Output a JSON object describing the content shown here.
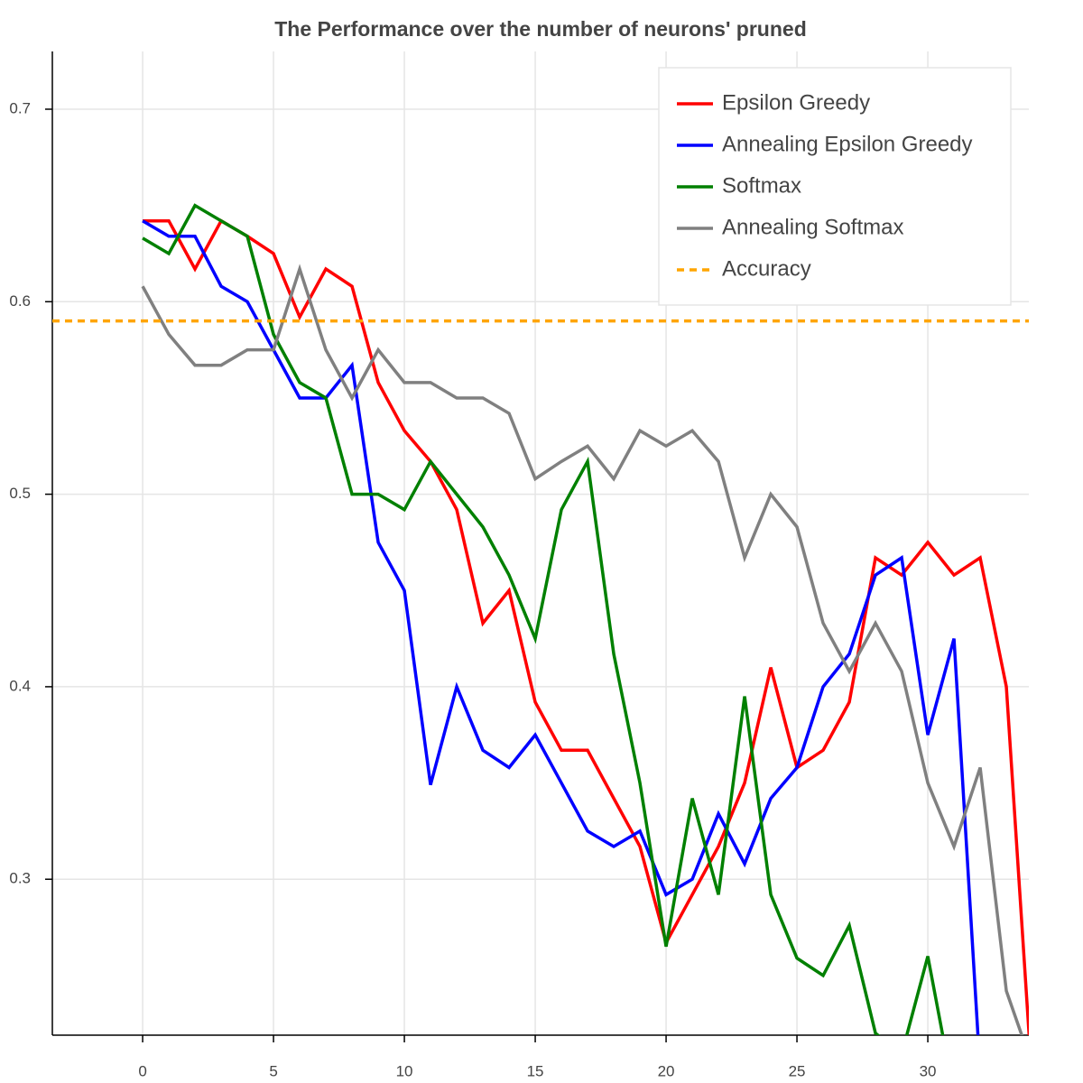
{
  "chart_data": {
    "type": "line",
    "title": "The Performance over the number of neurons' pruned",
    "x": [
      0,
      1,
      2,
      3,
      4,
      5,
      6,
      7,
      8,
      9,
      10,
      11,
      12,
      13,
      14,
      15,
      16,
      17,
      18,
      19,
      20,
      21,
      22,
      23,
      24,
      25,
      26,
      27,
      28,
      29,
      30,
      31,
      32,
      33,
      34
    ],
    "series": [
      {
        "name": "Epsilon Greedy",
        "color": "#ff0000",
        "values": [
          0.642,
          0.642,
          0.617,
          0.642,
          0.634,
          0.625,
          0.592,
          0.617,
          0.608,
          0.558,
          0.533,
          0.517,
          0.492,
          0.433,
          0.45,
          0.392,
          0.367,
          0.367,
          0.342,
          0.317,
          0.267,
          0.292,
          0.317,
          0.35,
          0.41,
          0.358,
          0.367,
          0.392,
          0.467,
          0.458,
          0.475,
          0.458,
          0.467,
          0.4,
          0.192
        ]
      },
      {
        "name": "Annealing Epsilon Greedy",
        "color": "#0000ff",
        "values": [
          0.642,
          0.634,
          0.634,
          0.608,
          0.6,
          0.575,
          0.55,
          0.55,
          0.567,
          0.475,
          0.45,
          0.349,
          0.4,
          0.367,
          0.358,
          0.375,
          0.35,
          0.325,
          0.317,
          0.325,
          0.292,
          0.3,
          0.334,
          0.308,
          0.342,
          0.358,
          0.4,
          0.417,
          0.458,
          0.467,
          0.375,
          0.425,
          0.2,
          null,
          null
        ]
      },
      {
        "name": "Softmax",
        "color": "#008000",
        "values": [
          0.633,
          0.625,
          0.65,
          0.642,
          0.634,
          0.583,
          0.558,
          0.55,
          0.5,
          0.5,
          0.492,
          0.517,
          0.5,
          0.483,
          0.458,
          0.425,
          0.492,
          0.517,
          0.417,
          0.35,
          0.265,
          0.342,
          0.292,
          0.395,
          0.292,
          0.259,
          0.25,
          0.276,
          0.22,
          0.209,
          0.26,
          0.188,
          null,
          null,
          null
        ]
      },
      {
        "name": "Annealing Softmax",
        "color": "#808080",
        "values": [
          0.608,
          0.583,
          0.567,
          0.567,
          0.575,
          0.575,
          0.617,
          0.575,
          0.55,
          0.575,
          0.558,
          0.558,
          0.55,
          0.55,
          0.542,
          0.508,
          0.517,
          0.525,
          0.508,
          0.533,
          0.525,
          0.533,
          0.517,
          0.467,
          0.5,
          0.483,
          0.433,
          0.408,
          0.433,
          0.408,
          0.35,
          0.317,
          0.358,
          0.242,
          0.203
        ]
      },
      {
        "name": "Accuracy",
        "color": "#ffa500",
        "dash": true,
        "value": 0.59
      }
    ],
    "xlim": [
      -3.45,
      33.86
    ],
    "ylim": [
      0.219,
      0.73
    ],
    "xticks": [
      0,
      5,
      10,
      15,
      20,
      25,
      30
    ],
    "yticks": [
      0.3,
      0.4,
      0.5,
      0.6,
      0.7
    ],
    "grid": true,
    "legend": "top-right"
  }
}
